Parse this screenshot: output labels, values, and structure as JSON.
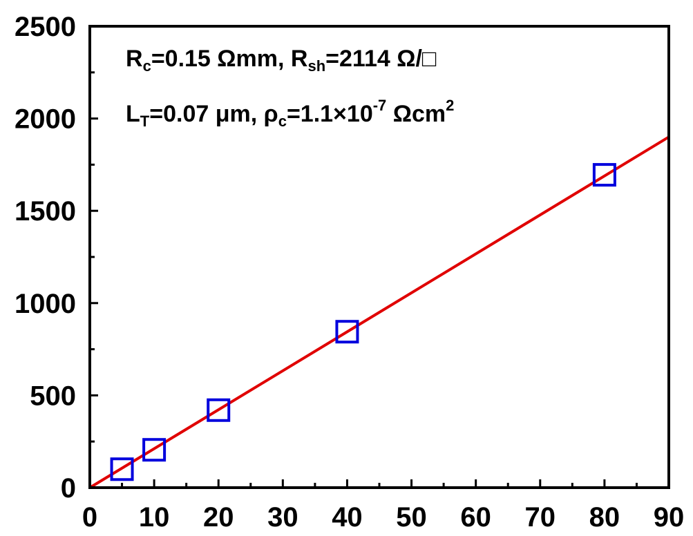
{
  "chart_data": {
    "type": "scatter",
    "xlim": [
      0,
      90
    ],
    "ylim": [
      0,
      2500
    ],
    "x_ticks": [
      "0",
      "10",
      "20",
      "30",
      "40",
      "50",
      "60",
      "70",
      "80",
      "90"
    ],
    "y_ticks": [
      "0",
      "500",
      "1000",
      "1500",
      "2000",
      "2500"
    ],
    "xlabel": "",
    "ylabel": "",
    "grid": false,
    "series": [
      {
        "marker": "open-square",
        "color": "#0000dd",
        "x": [
          5,
          10,
          20,
          40,
          80
        ],
        "y": [
          100,
          205,
          420,
          845,
          1695
        ]
      }
    ],
    "fit_line": {
      "color": "#e00000",
      "x": [
        0,
        90
      ],
      "y": [
        0,
        1900
      ]
    },
    "annotations": {
      "line1": {
        "rc_sym": "R",
        "rc_sub": "c",
        "rc_val": "=0.15 Ωmm, ",
        "rsh_sym": "R",
        "rsh_sub": "sh",
        "rsh_val": "=2114 Ω/□"
      },
      "line2": {
        "lt_sym": "L",
        "lt_sub": "T",
        "lt_val": "=0.07 μm, ",
        "rho_sym": "ρ",
        "rho_sub": "c",
        "rho_val": "=1.1×10",
        "rho_exp": "-7",
        "rho_unit": " Ωcm",
        "rho_unit_exp": "2"
      }
    }
  }
}
